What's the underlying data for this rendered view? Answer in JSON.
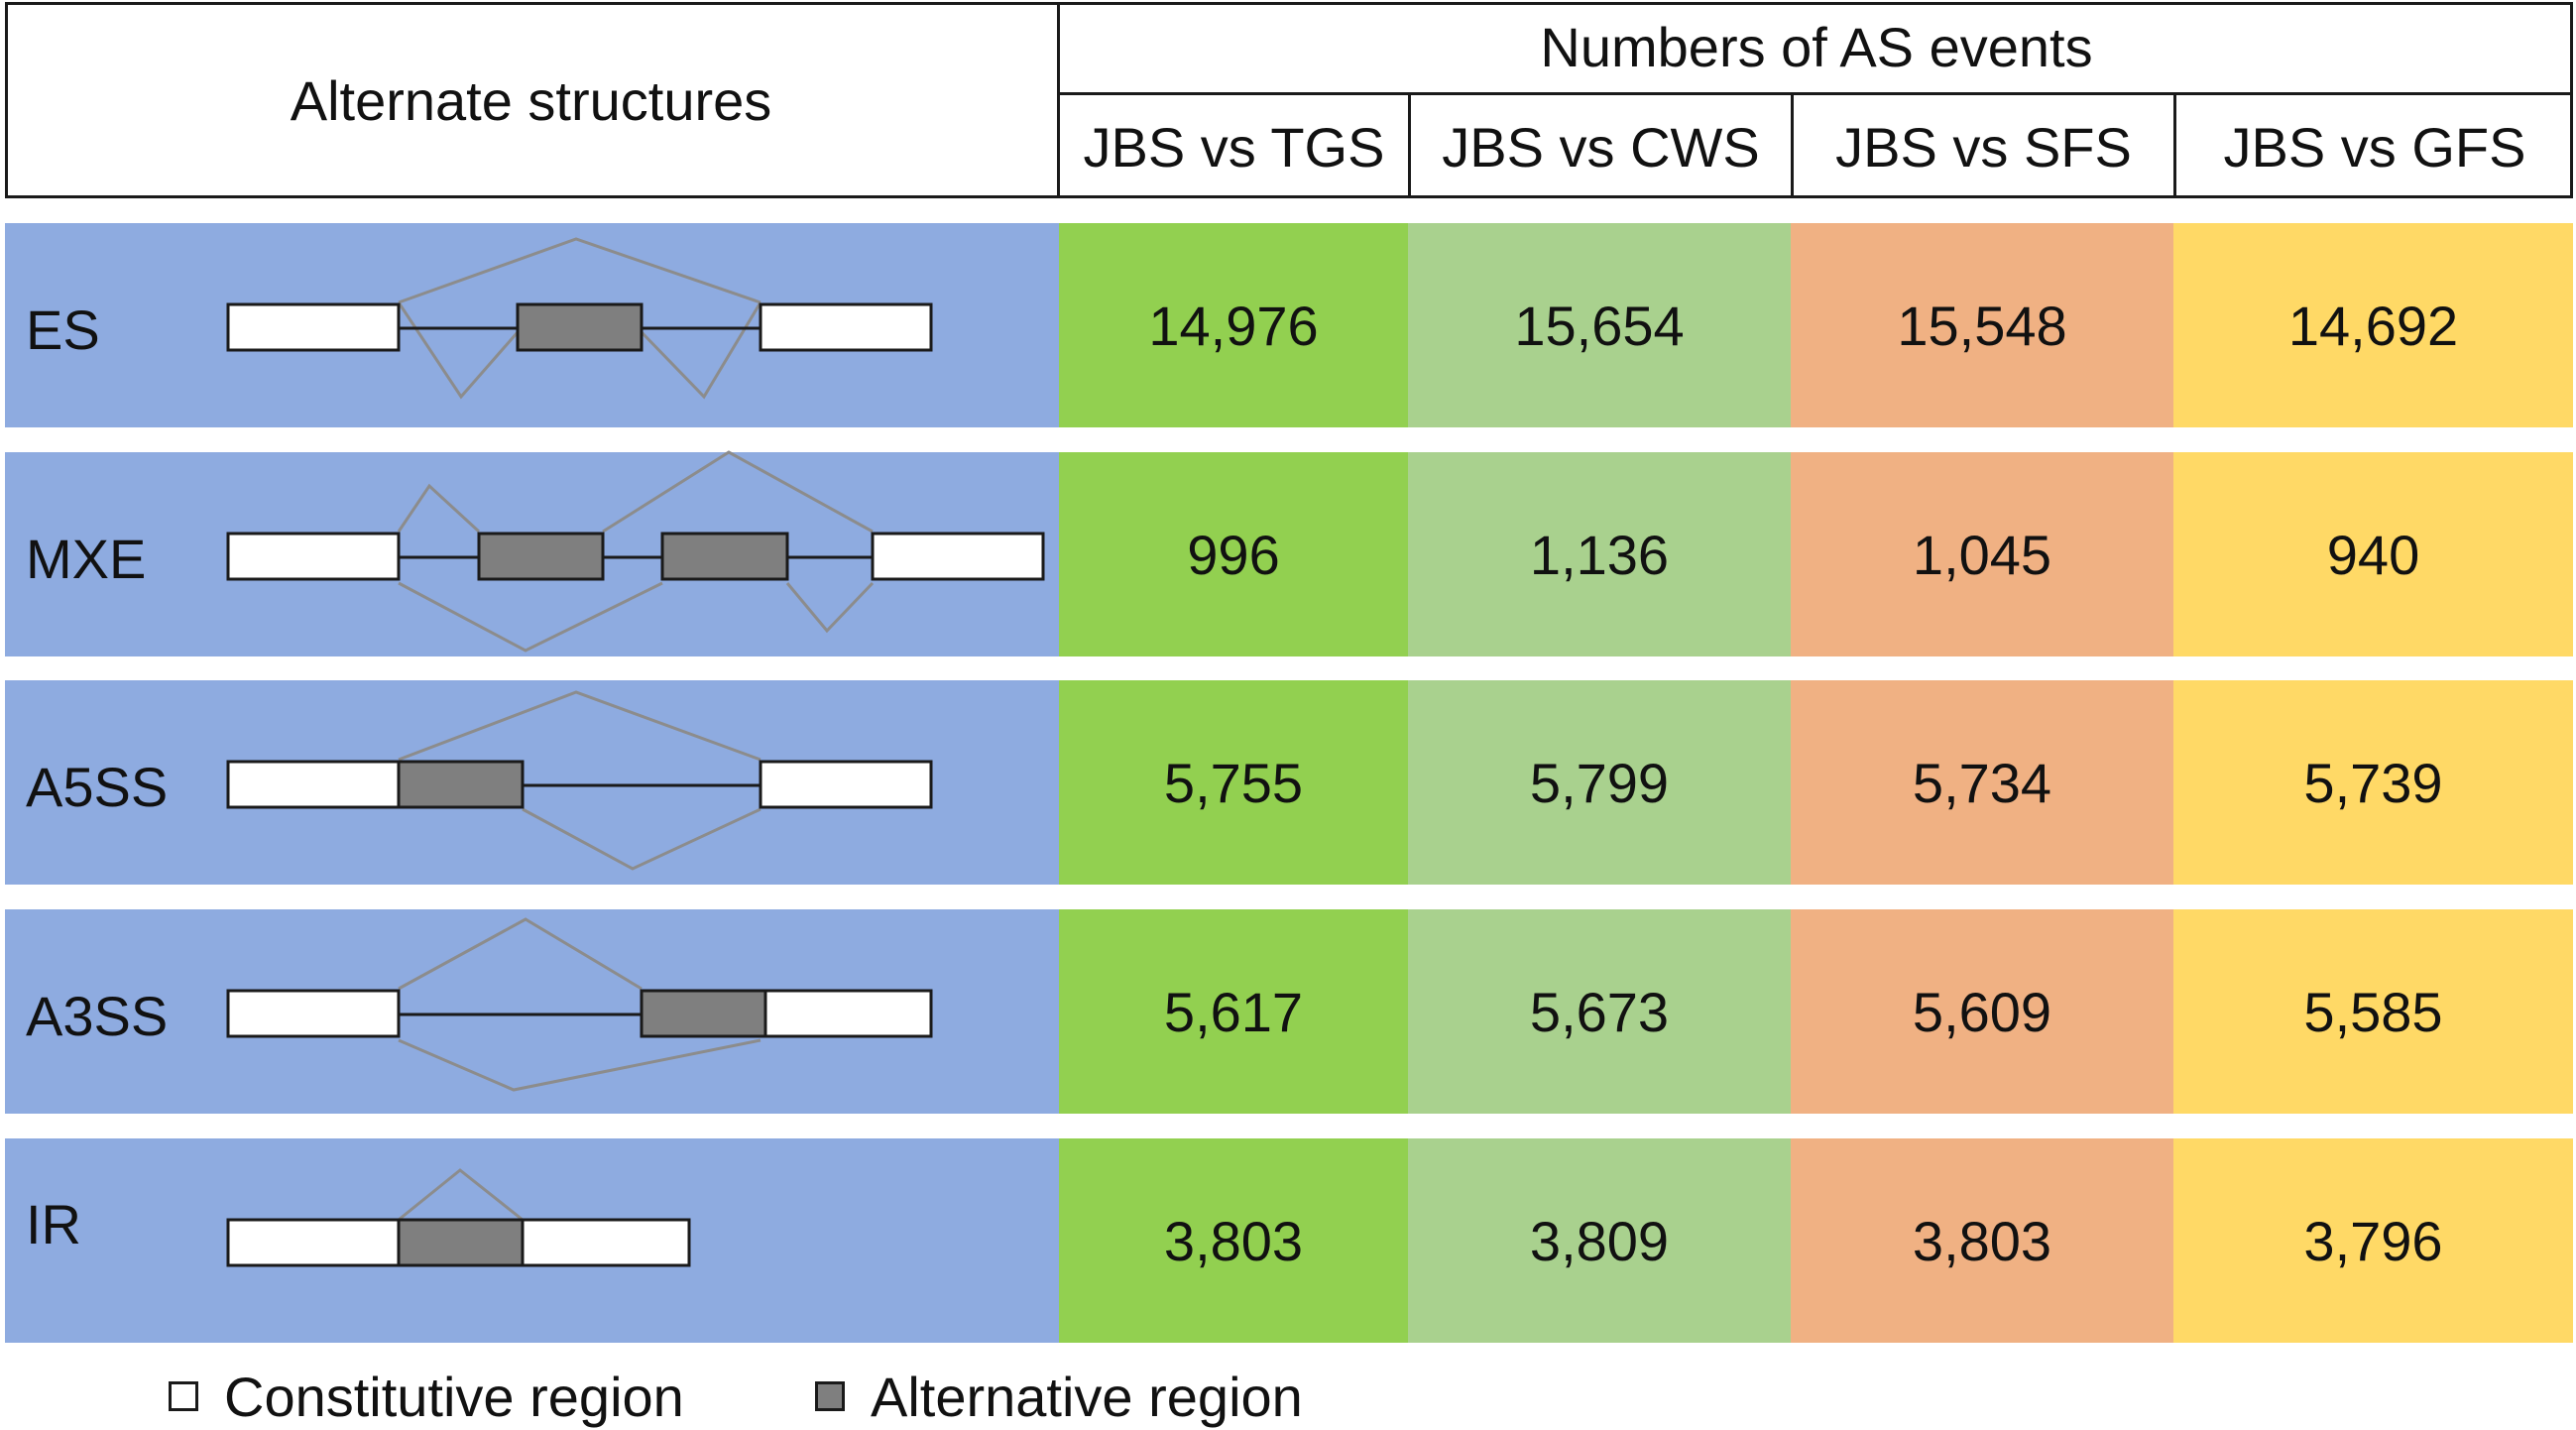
{
  "header": {
    "structures_label": "Alternate structures",
    "events_label": "Numbers of AS events",
    "comparisons": [
      "JBS vs TGS",
      "JBS vs CWS",
      "JBS vs SFS",
      "JBS vs GFS"
    ]
  },
  "rows": [
    {
      "label": "ES",
      "values": [
        "14,976",
        "15,654",
        "15,548",
        "14,692"
      ]
    },
    {
      "label": "MXE",
      "values": [
        "996",
        "1,136",
        "1,045",
        "940"
      ]
    },
    {
      "label": "A5SS",
      "values": [
        "5,755",
        "5,799",
        "5,734",
        "5,739"
      ]
    },
    {
      "label": "A3SS",
      "values": [
        "5,617",
        "5,673",
        "5,609",
        "5,585"
      ]
    },
    {
      "label": "IR",
      "values": [
        "3,803",
        "3,809",
        "3,803",
        "3,796"
      ]
    }
  ],
  "legend": {
    "constitutive": "Constitutive region",
    "alternative": "Alternative region"
  },
  "colors": {
    "structures_bg": "#8eabe0",
    "tgs_bg": "#92d050",
    "cws_bg": "#a9d18e",
    "sfs_bg": "#f0b183",
    "gfs_bg": "#ffd966",
    "constitutive_fill": "#ffffff",
    "alternative_fill": "#7f7f7f",
    "splice_line": "#8c8c8c"
  }
}
